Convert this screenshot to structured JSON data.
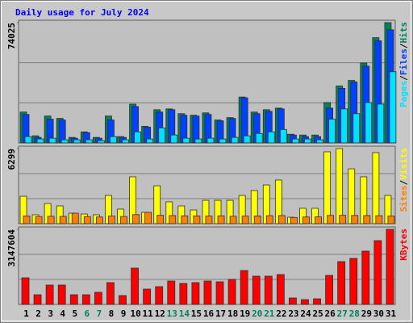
{
  "title": "Daily usage for July 2024",
  "legend_separator": "/",
  "chart_data": [
    {
      "type": "bar",
      "ylim": [
        0,
        74025
      ],
      "yticks": [
        74025
      ],
      "grid": true,
      "series": [
        {
          "name": "Hits",
          "color": "#00805c",
          "values": [
            19000,
            4400,
            16560,
            15100,
            3400,
            6800,
            3400,
            16560,
            3900,
            23860,
            10230,
            20450,
            20940,
            18020,
            17050,
            18500,
            14120,
            15580,
            28250,
            19000,
            20450,
            21430,
            5360,
            4870,
            4870,
            24840,
            35060,
            38470,
            49190,
            64770,
            74025
          ]
        },
        {
          "name": "Files",
          "color": "#0040ff",
          "values": [
            17530,
            3400,
            14610,
            14120,
            2920,
            6330,
            2920,
            14120,
            3400,
            22400,
            9740,
            18990,
            20450,
            17050,
            16560,
            17530,
            13640,
            15100,
            27760,
            18020,
            19480,
            20940,
            4870,
            3900,
            3900,
            21430,
            33600,
            37500,
            47240,
            62820,
            69640
          ]
        },
        {
          "name": "Pages",
          "color": "#00e0ff",
          "values": [
            3900,
            2430,
            2920,
            1950,
            1950,
            1950,
            1460,
            3900,
            1950,
            6820,
            2430,
            9250,
            4870,
            2920,
            2430,
            2920,
            2430,
            3400,
            4380,
            5840,
            6820,
            8280,
            2430,
            2430,
            1950,
            14610,
            20940,
            18020,
            24840,
            23860,
            43830
          ]
        }
      ]
    },
    {
      "type": "bar",
      "ylim": [
        0,
        6299
      ],
      "yticks": [
        6299
      ],
      "grid": true,
      "series": [
        {
          "name": "Visits",
          "color": "#ffff00",
          "values": [
            2300,
            745,
            1690,
            1490,
            880,
            810,
            745,
            2370,
            1220,
            3930,
            950,
            3180,
            1830,
            1490,
            1150,
            1960,
            1960,
            1960,
            2370,
            2780,
            3250,
            3660,
            540,
            1290,
            1290,
            6030,
            6299,
            4600,
            3930,
            5960,
            2370
          ]
        },
        {
          "name": "Sites",
          "color": "#ff8000",
          "values": [
            650,
            600,
            620,
            610,
            880,
            590,
            560,
            640,
            600,
            760,
            950,
            700,
            680,
            660,
            650,
            640,
            660,
            620,
            640,
            650,
            670,
            680,
            520,
            560,
            570,
            690,
            700,
            690,
            680,
            670,
            640
          ]
        }
      ]
    },
    {
      "type": "bar",
      "ylim": [
        0,
        3147604
      ],
      "yticks": [
        3147604
      ],
      "grid": true,
      "categories": [
        "1",
        "2",
        "3",
        "4",
        "5",
        "6",
        "7",
        "8",
        "9",
        "10",
        "11",
        "12",
        "13",
        "14",
        "15",
        "16",
        "17",
        "18",
        "19",
        "20",
        "21",
        "22",
        "23",
        "24",
        "25",
        "26",
        "27",
        "28",
        "29",
        "30",
        "31"
      ],
      "highlight_indices": [
        5,
        6,
        12,
        13,
        19,
        20,
        26,
        27
      ],
      "highlight_color": "#00805c",
      "series": [
        {
          "name": "KBytes",
          "color": "#ff0000",
          "values": [
            1117000,
            406000,
            812000,
            812000,
            406000,
            406000,
            508000,
            914000,
            372000,
            1523000,
            643000,
            745000,
            982000,
            880000,
            914000,
            982000,
            948000,
            1049000,
            1421000,
            1185000,
            1185000,
            1252000,
            271000,
            203000,
            237000,
            1218000,
            1794000,
            1929000,
            2234000,
            2674000,
            3147604
          ]
        }
      ]
    }
  ]
}
